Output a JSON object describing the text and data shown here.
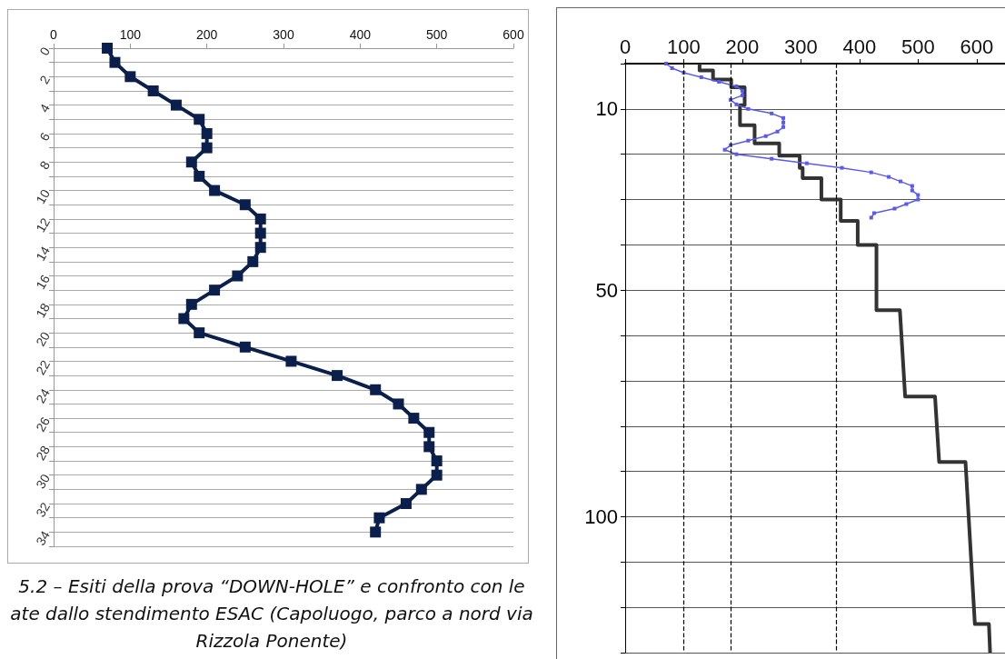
{
  "chart_data": [
    {
      "type": "line",
      "xlim": [
        0,
        600
      ],
      "xticks": [
        0,
        100,
        200,
        300,
        400,
        500,
        600
      ],
      "ylim": [
        35,
        0
      ],
      "yticks": [
        0,
        {
          "value": 1,
          "label": null
        },
        2,
        {
          "value": 3,
          "label": null
        },
        4,
        {
          "value": 5,
          "label": null
        },
        6,
        {
          "value": 7,
          "label": null
        },
        8,
        {
          "value": 9,
          "label": null
        },
        10,
        {
          "value": 11,
          "label": null
        },
        12,
        {
          "value": 13,
          "label": null
        },
        14,
        {
          "value": 15,
          "label": null
        },
        16,
        {
          "value": 17,
          "label": null
        },
        18,
        {
          "value": 19,
          "label": null
        },
        20,
        {
          "value": 21,
          "label": null
        },
        22,
        {
          "value": 23,
          "label": null
        },
        24,
        {
          "value": 25,
          "label": null
        },
        26,
        {
          "value": 27,
          "label": null
        },
        28,
        {
          "value": 29,
          "label": null
        },
        30,
        {
          "value": 31,
          "label": null
        },
        32,
        {
          "value": 33,
          "label": null
        },
        34,
        {
          "value": 35,
          "label": null
        }
      ],
      "grid": "y",
      "marker": "square",
      "line_style": "solid",
      "series": [
        {
          "color": "#0b1f4d",
          "x": [
            70,
            80,
            100,
            130,
            160,
            190,
            200,
            200,
            180,
            190,
            210,
            250,
            270,
            270,
            270,
            260,
            240,
            210,
            180,
            170,
            190,
            250,
            310,
            370,
            420,
            450,
            470,
            490,
            490,
            500,
            500,
            480,
            460,
            425,
            420
          ],
          "values": [
            0,
            1,
            2,
            3,
            4,
            5,
            6,
            7,
            8,
            9,
            10,
            11,
            12,
            13,
            14,
            15,
            16,
            17,
            18,
            19,
            20,
            21,
            22,
            23,
            24,
            25,
            26,
            27,
            28,
            29,
            30,
            31,
            32,
            33,
            34
          ]
        }
      ],
      "annotations": [
        "5.2 – Esiti della prova “DOWN-HOLE”  e  confronto con le\nate dallo stendimento ESAC  (Capoluogo, parco a nord via\nRizzola Ponente)"
      ]
    },
    {
      "type": "line",
      "xlim": [
        0,
        650
      ],
      "xticks": [
        0,
        100,
        200,
        300,
        400,
        500,
        600
      ],
      "ylim": [
        130,
        0
      ],
      "yticks": [
        {
          "value": 0,
          "label": null
        },
        10,
        {
          "value": 20,
          "label": null
        },
        {
          "value": 30,
          "label": null
        },
        {
          "value": 40,
          "label": null
        },
        50,
        {
          "value": 60,
          "label": null
        },
        {
          "value": 70,
          "label": null
        },
        {
          "value": 80,
          "label": null
        },
        {
          "value": 90,
          "label": null
        },
        100,
        {
          "value": 110,
          "label": null
        },
        {
          "value": 120,
          "label": null
        },
        {
          "value": 130,
          "label": null
        }
      ],
      "grid": "y",
      "series": [
        {
          "color": "#333333",
          "marker": "none",
          "line_style": "solid",
          "x": [
            127,
            127,
            150,
            150,
            181,
            181,
            204,
            204,
            196,
            196,
            221,
            221,
            263,
            263,
            298,
            298,
            303,
            303,
            335,
            335,
            368,
            368,
            397,
            397,
            429,
            429,
            469,
            478,
            529,
            536,
            581,
            597,
            621,
            623
          ],
          "values": [
            0,
            1.5,
            1.5,
            3.5,
            3.5,
            5.2,
            5.2,
            9.2,
            9.2,
            13.6,
            13.6,
            17.6,
            17.6,
            20.3,
            20.3,
            23,
            23,
            25.3,
            25.3,
            30,
            30,
            34.7,
            34.7,
            40,
            40,
            54.4,
            54.4,
            73.5,
            73.5,
            87.9,
            87.9,
            123.7,
            123.7,
            130
          ]
        },
        {
          "color": "#5a5af0",
          "marker": "square",
          "line_style": "solid",
          "x": [
            70,
            80,
            100,
            130,
            160,
            190,
            200,
            200,
            180,
            190,
            210,
            250,
            270,
            270,
            270,
            260,
            240,
            210,
            180,
            170,
            190,
            250,
            310,
            370,
            420,
            450,
            470,
            490,
            490,
            500,
            500,
            480,
            460,
            425,
            420
          ],
          "values": [
            0,
            1,
            2,
            3,
            4,
            5,
            6,
            7,
            8,
            9,
            10,
            11,
            12,
            13,
            14,
            15,
            16,
            17,
            18,
            19,
            20,
            21,
            22,
            23,
            24,
            25,
            26,
            27,
            28,
            29,
            30,
            31,
            32,
            33,
            34
          ]
        }
      ],
      "ref_lines": [
        {
          "axis": "x",
          "value": 100,
          "line_style": "dashed",
          "color": "#000000"
        },
        {
          "axis": "x",
          "value": 180,
          "line_style": "dashed",
          "color": "#000000"
        },
        {
          "axis": "x",
          "value": 360,
          "line_style": "dashed",
          "color": "#000000"
        }
      ]
    }
  ]
}
